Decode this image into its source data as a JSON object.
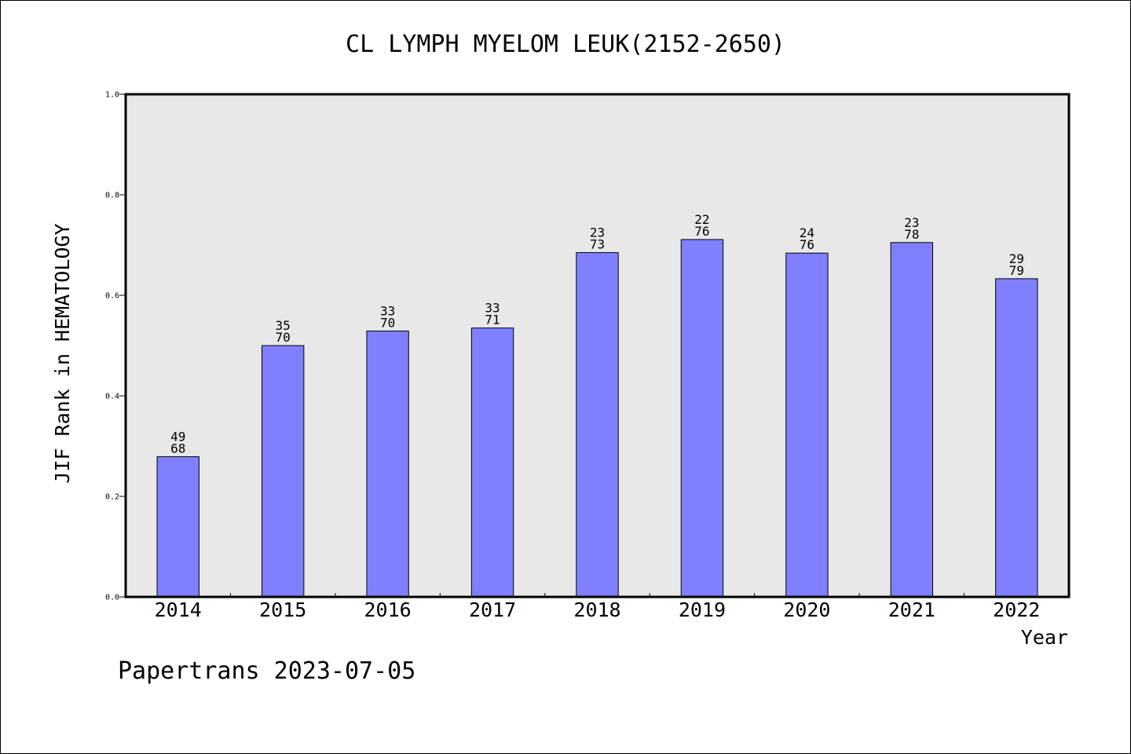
{
  "chart_data": {
    "type": "bar",
    "title": "CL LYMPH MYELOM LEUK(2152-2650)",
    "xlabel": "Year",
    "ylabel": "JIF Rank in HEMATOLOGY",
    "ylim": [
      0,
      1.0
    ],
    "yticks": [
      "0.0",
      "0.2",
      "0.4",
      "0.6",
      "0.8",
      "1.0"
    ],
    "grid": false,
    "categories": [
      "2014",
      "2015",
      "2016",
      "2017",
      "2018",
      "2019",
      "2020",
      "2021",
      "2022"
    ],
    "values": [
      0.279,
      0.5,
      0.529,
      0.535,
      0.685,
      0.711,
      0.684,
      0.705,
      0.633
    ],
    "rank_labels": [
      {
        "rank": "49",
        "total": "68"
      },
      {
        "rank": "35",
        "total": "70"
      },
      {
        "rank": "33",
        "total": "70"
      },
      {
        "rank": "33",
        "total": "71"
      },
      {
        "rank": "23",
        "total": "73"
      },
      {
        "rank": "22",
        "total": "76"
      },
      {
        "rank": "24",
        "total": "76"
      },
      {
        "rank": "23",
        "total": "78"
      },
      {
        "rank": "29",
        "total": "79"
      }
    ],
    "colors": {
      "bar": "#8080ff",
      "plot_background": "#e8e8e8",
      "axis": "#000000"
    }
  },
  "footer": {
    "watermark": "Papertrans 2023-07-05"
  }
}
